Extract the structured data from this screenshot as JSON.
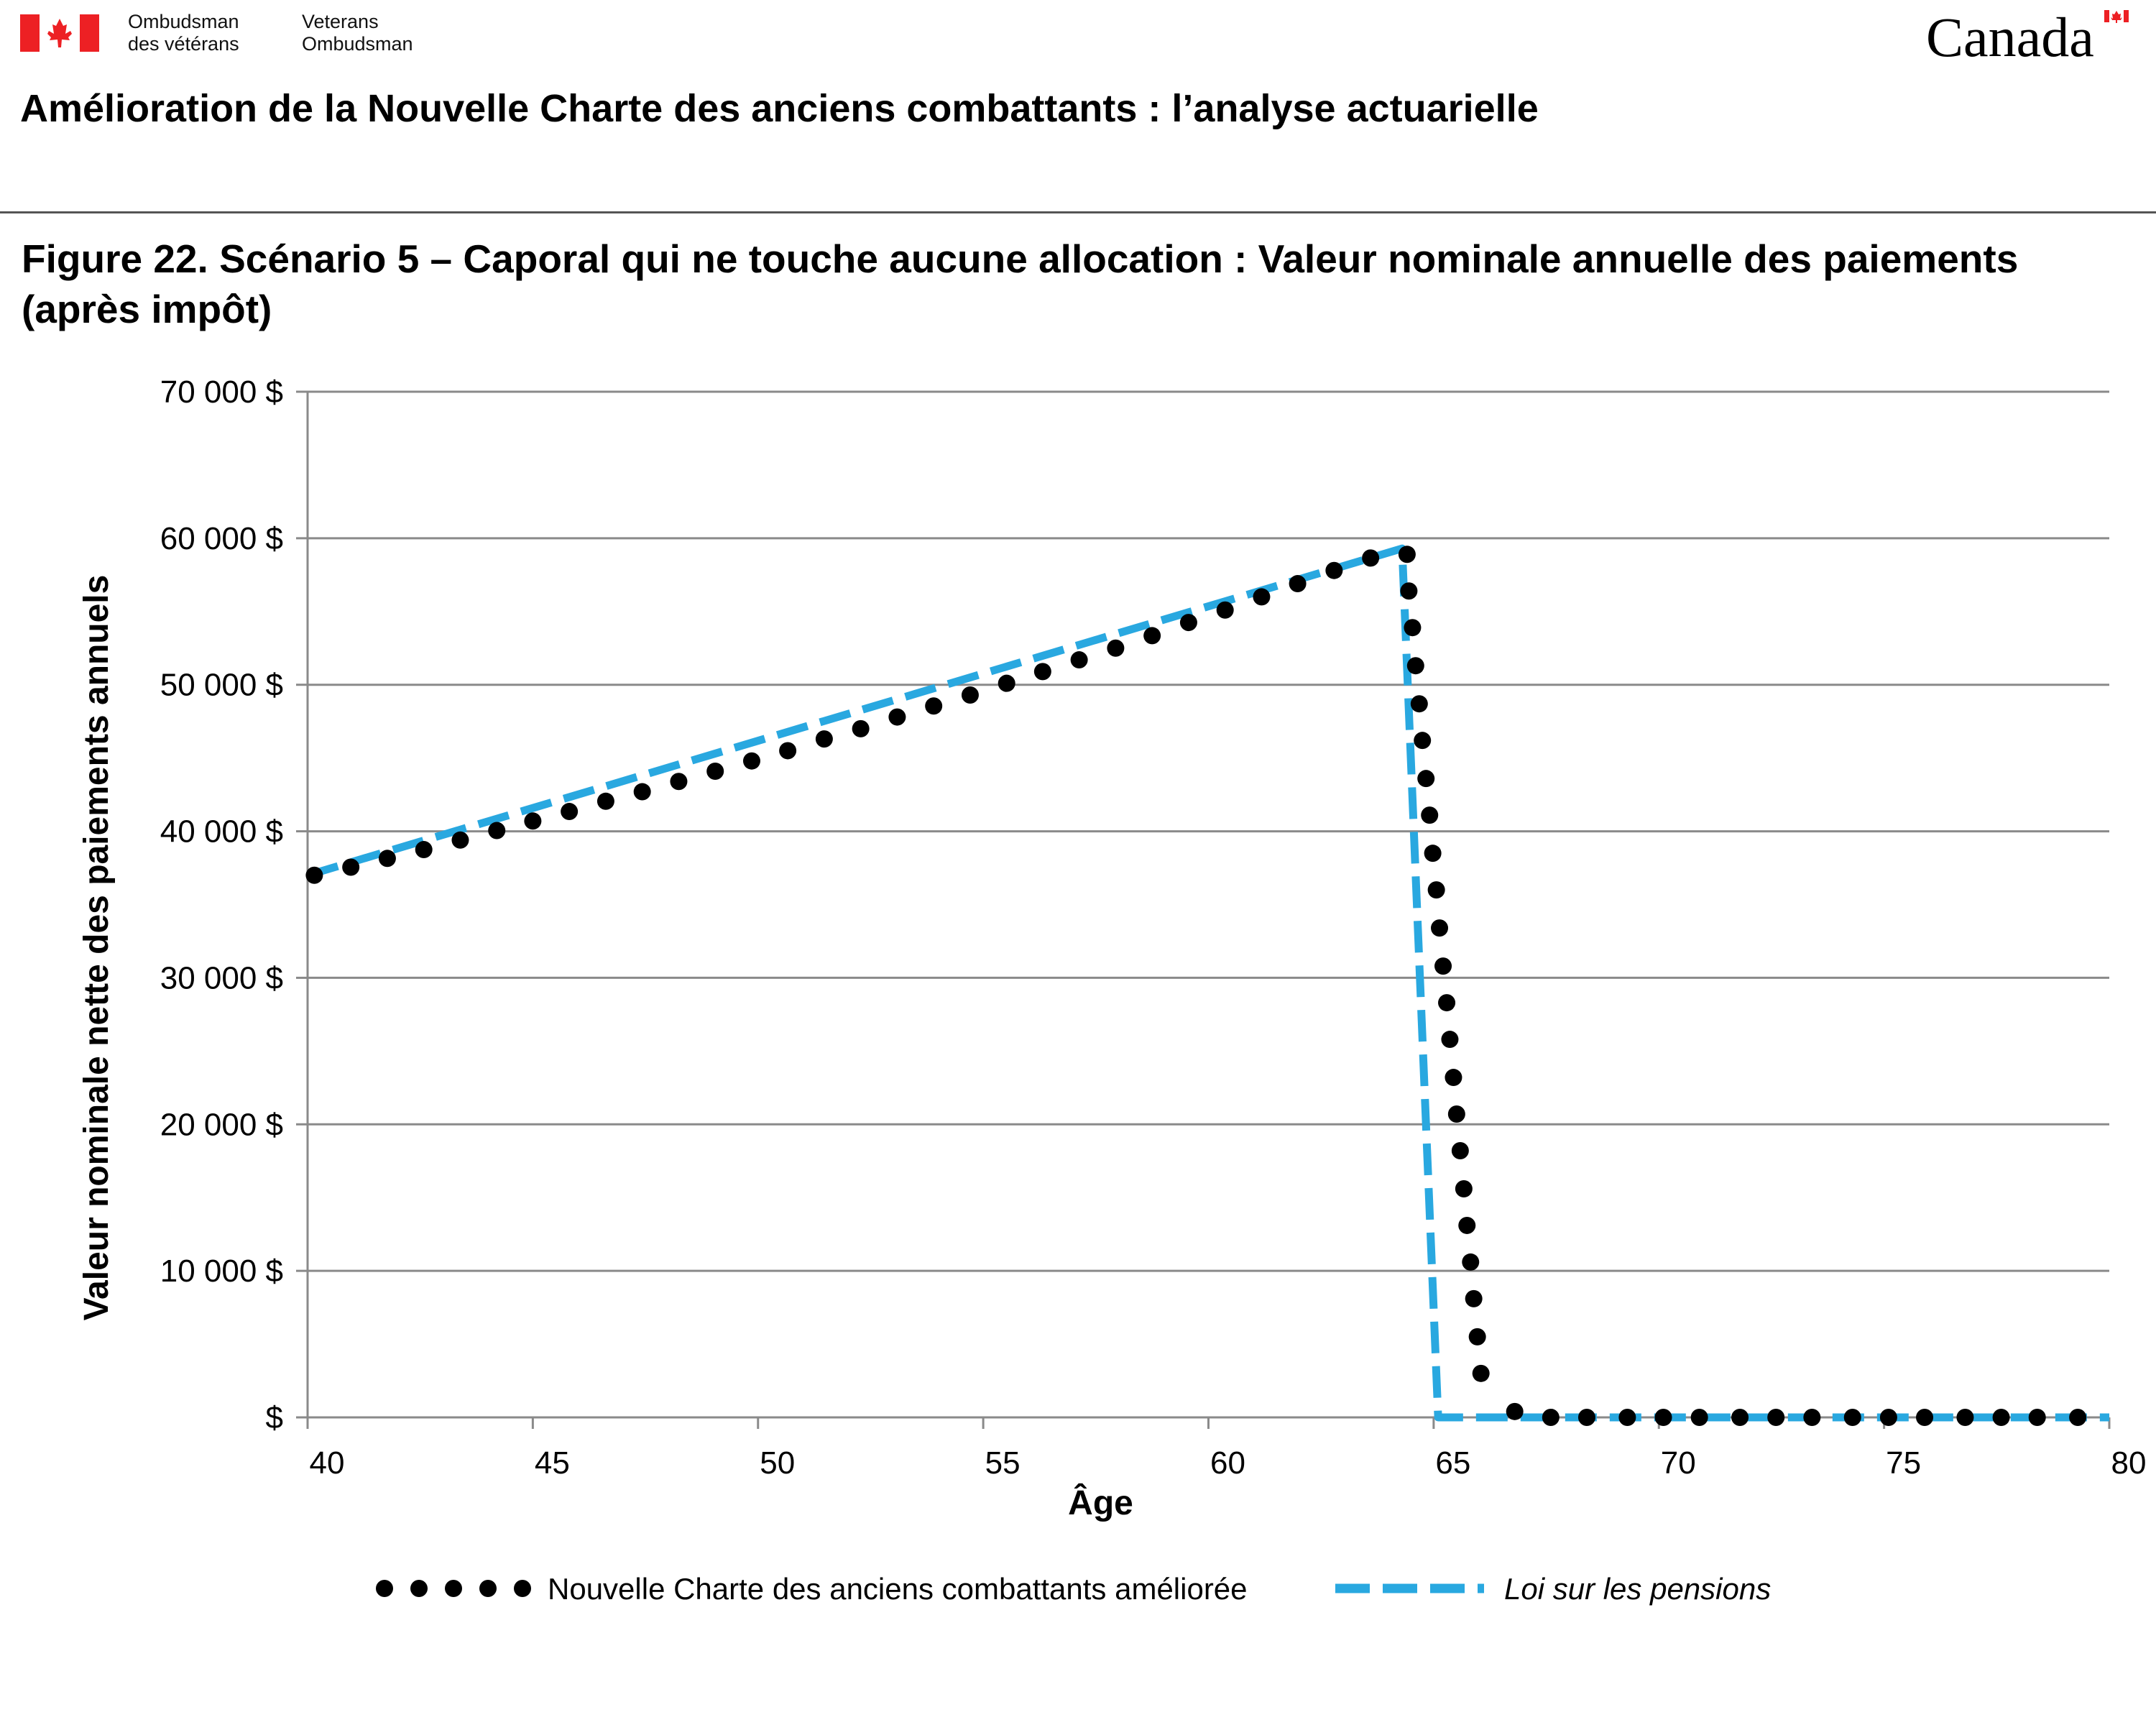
{
  "header": {
    "org_fr": "Ombudsman\ndes vétérans",
    "org_en": "Veterans\nOmbudsman",
    "wordmark": "Canada",
    "flag_color": "#ed2024"
  },
  "document_title": "Amélioration de la Nouvelle Charte des anciens combattants : l’analyse actuarielle",
  "figure_title": "Figure 22. Scénario 5 – Caporal qui ne touche aucune allocation : Valeur nominale annuelle des paiements (après impôt)",
  "chart_data": {
    "type": "line",
    "xlabel": "Âge",
    "ylabel": "Valeur nominale nette des paiements annuels",
    "xlim": [
      40,
      80
    ],
    "ylim": [
      0,
      70000
    ],
    "x_ticks": [
      "40",
      "45",
      "50",
      "55",
      "60",
      "65",
      "70",
      "75",
      "80"
    ],
    "y_ticks": [
      "$",
      "10 000 $",
      "20 000 $",
      "30 000 $",
      "40 000 $",
      "50 000 $",
      "60 000 $",
      "70 000 $"
    ],
    "grid": true,
    "legend": "bottom",
    "series": [
      {
        "name": "Nouvelle Charte des anciens combattants améliorée",
        "style": "dotted",
        "color": "#000000",
        "x": [
          40.15,
          40.96,
          41.77,
          42.58,
          43.39,
          44.2,
          45.0,
          45.81,
          46.62,
          47.43,
          48.24,
          49.05,
          49.86,
          50.66,
          51.47,
          52.28,
          53.09,
          53.9,
          54.71,
          55.52,
          56.32,
          57.13,
          57.94,
          58.75,
          59.56,
          60.37,
          61.18,
          61.98,
          62.79,
          63.6,
          64.41,
          64.45,
          64.53,
          64.6,
          64.68,
          64.75,
          64.83,
          64.91,
          64.98,
          65.06,
          65.13,
          65.21,
          65.29,
          65.36,
          65.44,
          65.51,
          65.59,
          65.67,
          65.74,
          65.82,
          65.89,
          65.97,
          66.05,
          66.8,
          67.6,
          68.4,
          69.3,
          70.1,
          70.9,
          71.8,
          72.6,
          73.4,
          74.3,
          75.1,
          75.9,
          76.8,
          77.6,
          78.4,
          79.3
        ],
        "y": [
          37000,
          37550,
          38150,
          38750,
          39400,
          40050,
          40700,
          41350,
          42050,
          42700,
          43400,
          44100,
          44800,
          45500,
          46300,
          47000,
          47800,
          48550,
          49300,
          50100,
          50900,
          51700,
          52500,
          53350,
          54250,
          55100,
          56000,
          56900,
          57800,
          58650,
          58900,
          56400,
          53900,
          51300,
          48700,
          46200,
          43600,
          41100,
          38500,
          36000,
          33400,
          30800,
          28300,
          25800,
          23200,
          20700,
          18200,
          15600,
          13100,
          10600,
          8100,
          5500,
          3000,
          400,
          0,
          0,
          0,
          0,
          0,
          0,
          0,
          0,
          0,
          0,
          0,
          0,
          0,
          0,
          0
        ]
      },
      {
        "name": "Loi sur les pensions",
        "style": "dashed",
        "color": "#29a8e0",
        "x": [
          40.0,
          64.3,
          65.1,
          80.0
        ],
        "y": [
          37000,
          59300,
          0,
          0
        ]
      }
    ]
  }
}
